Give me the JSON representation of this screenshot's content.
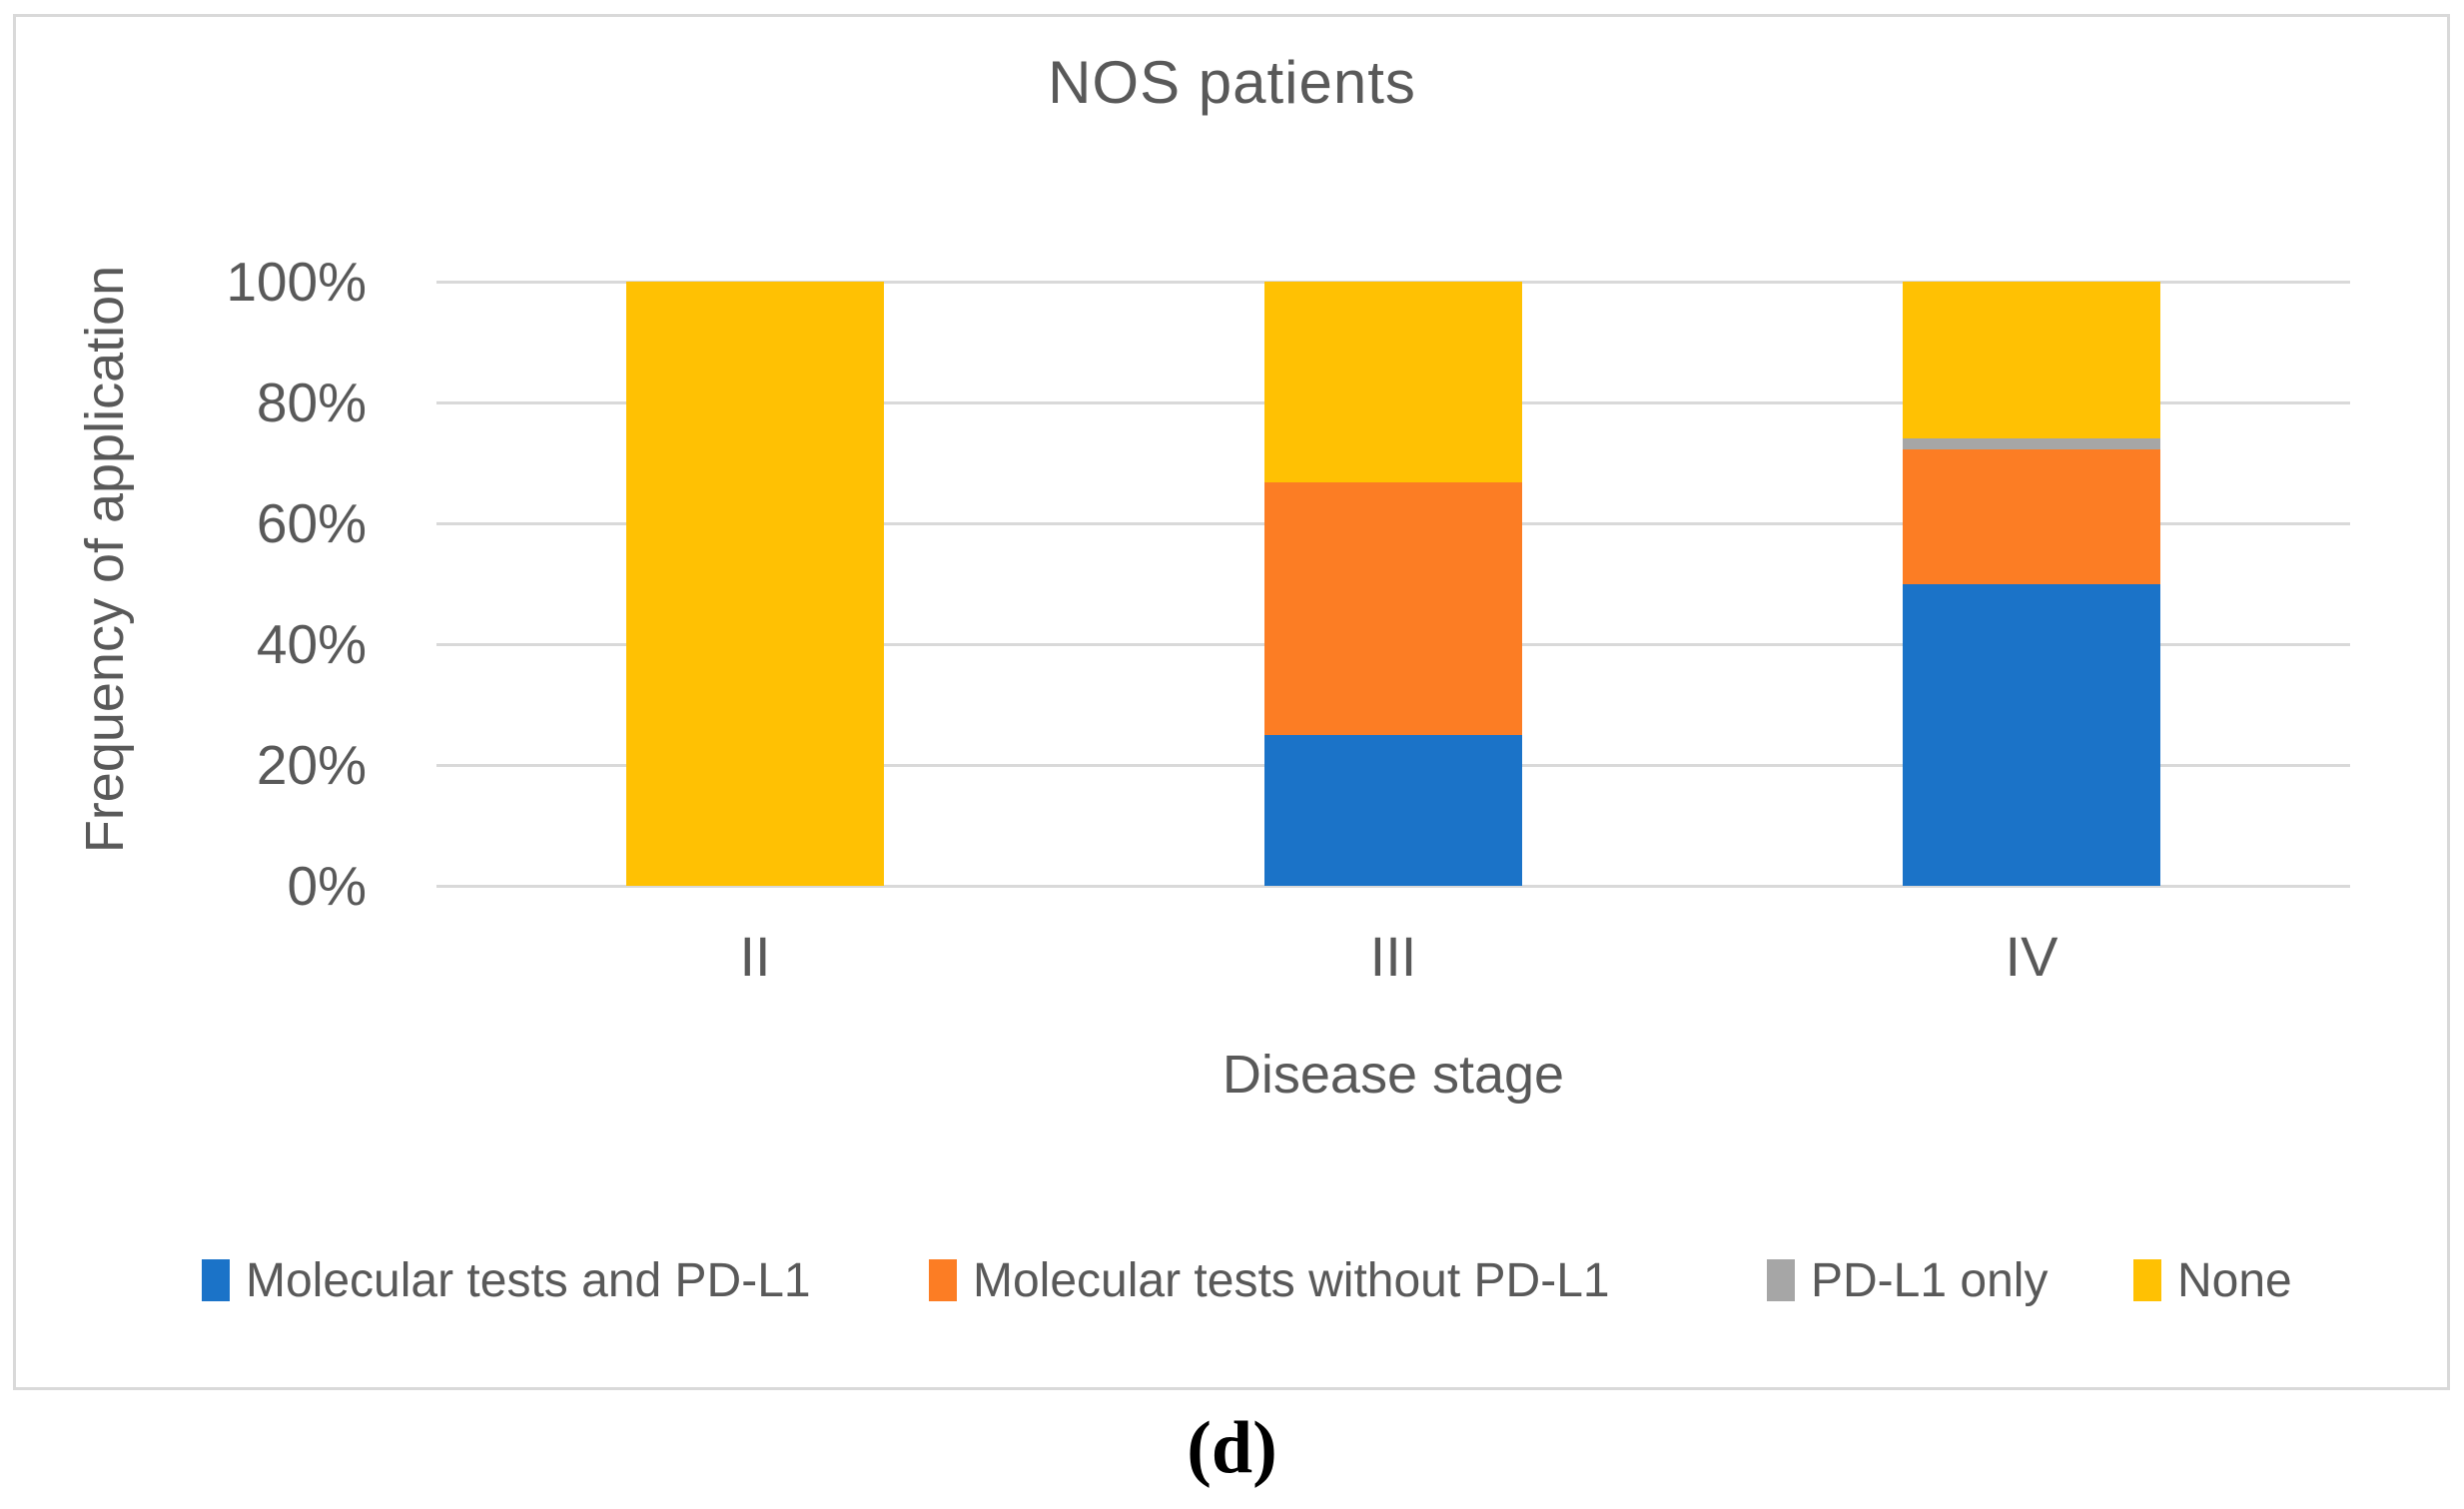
{
  "figure": {
    "caption": "(d)"
  },
  "chart_data": {
    "type": "bar",
    "subtype": "stacked-100-percent",
    "title": "NOS patients",
    "xlabel": "Disease stage",
    "ylabel": "Frequency of application",
    "categories": [
      "II",
      "III",
      "IV"
    ],
    "series": [
      {
        "name": "Molecular tests and PD-L1",
        "color": "#1b73c8",
        "values": [
          0,
          25,
          50
        ]
      },
      {
        "name": "Molecular tests without PD-L1",
        "color": "#fc7d24",
        "values": [
          0,
          41.7,
          22.2
        ]
      },
      {
        "name": "PD-L1 only",
        "color": "#a6a6a6",
        "values": [
          0,
          0,
          1.9
        ]
      },
      {
        "name": "None",
        "color": "#ffc103",
        "values": [
          100,
          33.3,
          25.9
        ]
      }
    ],
    "y_axis": {
      "ticks": [
        {
          "label": "0%",
          "value": 0
        },
        {
          "label": "20%",
          "value": 20
        },
        {
          "label": "40%",
          "value": 40
        },
        {
          "label": "60%",
          "value": 60
        },
        {
          "label": "80%",
          "value": 80
        },
        {
          "label": "100%",
          "value": 100
        }
      ],
      "ylim": [
        0,
        100
      ]
    },
    "grid": true,
    "gridline_color": "#d9d9d9",
    "text_color": "#595959",
    "legend_position": "bottom"
  }
}
